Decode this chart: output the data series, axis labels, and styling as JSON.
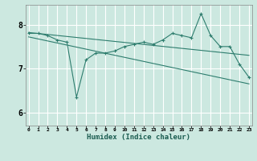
{
  "xlabel": "Humidex (Indice chaleur)",
  "bg_color": "#cce8e0",
  "grid_color": "#ffffff",
  "line_color": "#2e7d6e",
  "x_ticks": [
    0,
    1,
    2,
    3,
    4,
    5,
    6,
    7,
    8,
    9,
    10,
    11,
    12,
    13,
    14,
    15,
    16,
    17,
    18,
    19,
    20,
    21,
    22,
    23
  ],
  "y_ticks": [
    6,
    7,
    8
  ],
  "ylim": [
    5.7,
    8.45
  ],
  "xlim": [
    -0.3,
    23.3
  ],
  "series1": [
    7.8,
    7.8,
    7.75,
    7.65,
    7.6,
    6.35,
    7.2,
    7.35,
    7.35,
    7.4,
    7.5,
    7.55,
    7.6,
    7.55,
    7.65,
    7.8,
    7.75,
    7.7,
    8.25,
    7.75,
    7.5,
    7.5,
    7.1,
    6.8
  ],
  "line_regression1": [
    [
      0,
      7.82
    ],
    [
      23,
      7.3
    ]
  ],
  "line_regression2": [
    [
      0,
      7.72
    ],
    [
      23,
      6.65
    ]
  ]
}
